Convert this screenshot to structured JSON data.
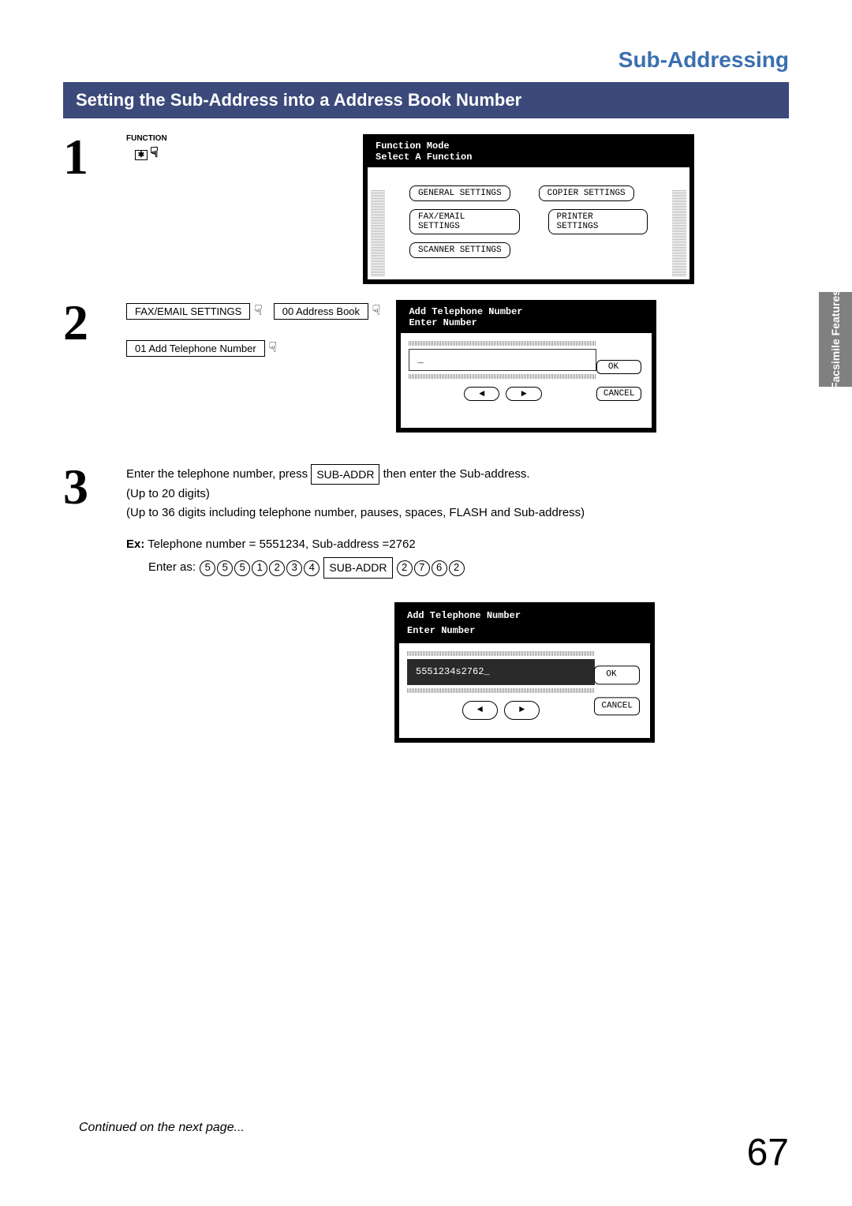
{
  "page": {
    "title": "Sub-Addressing",
    "section_heading": "Setting the Sub-Address into a Address Book Number",
    "side_tab": "Facsimile\nFeatures",
    "continued": "Continued on the next page...",
    "number": "67"
  },
  "step1": {
    "num": "1",
    "function_label": "FUNCTION",
    "lcd": {
      "title1": "Function Mode",
      "title2": "Select A Function",
      "btn_general": "GENERAL SETTINGS",
      "btn_copier": "COPIER SETTINGS",
      "btn_fax": "FAX/EMAIL SETTINGS",
      "btn_printer": "PRINTER SETTINGS",
      "btn_scanner": "SCANNER SETTINGS"
    }
  },
  "step2": {
    "num": "2",
    "btn_fax_email": "FAX/EMAIL SETTINGS",
    "btn_address_book": "00 Address Book",
    "btn_add_tel": "01 Add Telephone Number",
    "lcd": {
      "title1": "Add Telephone Number",
      "title2": "Enter Number",
      "entry": "_",
      "ok": "OK",
      "cancel": "CANCEL"
    }
  },
  "step3": {
    "num": "3",
    "line1_a": "Enter the telephone number, press ",
    "line1_btn": "SUB-ADDR",
    "line1_b": " then enter the Sub-address.",
    "line2": "(Up to 20 digits)",
    "line3": "(Up to 36 digits including telephone number, pauses, spaces, FLASH and Sub-address)",
    "ex_label": "Ex:",
    "ex_text": " Telephone number = 5551234, Sub-address =2762",
    "enter_as": "Enter as:",
    "keys": [
      "5",
      "5",
      "5",
      "1",
      "2",
      "3",
      "4"
    ],
    "sub_addr": "SUB-ADDR",
    "keys2": [
      "2",
      "7",
      "6",
      "2"
    ],
    "lcd": {
      "title1": "Add Telephone Number",
      "title2": "Enter Number",
      "entry": "5551234s2762_",
      "ok": "OK",
      "cancel": "CANCEL"
    }
  }
}
